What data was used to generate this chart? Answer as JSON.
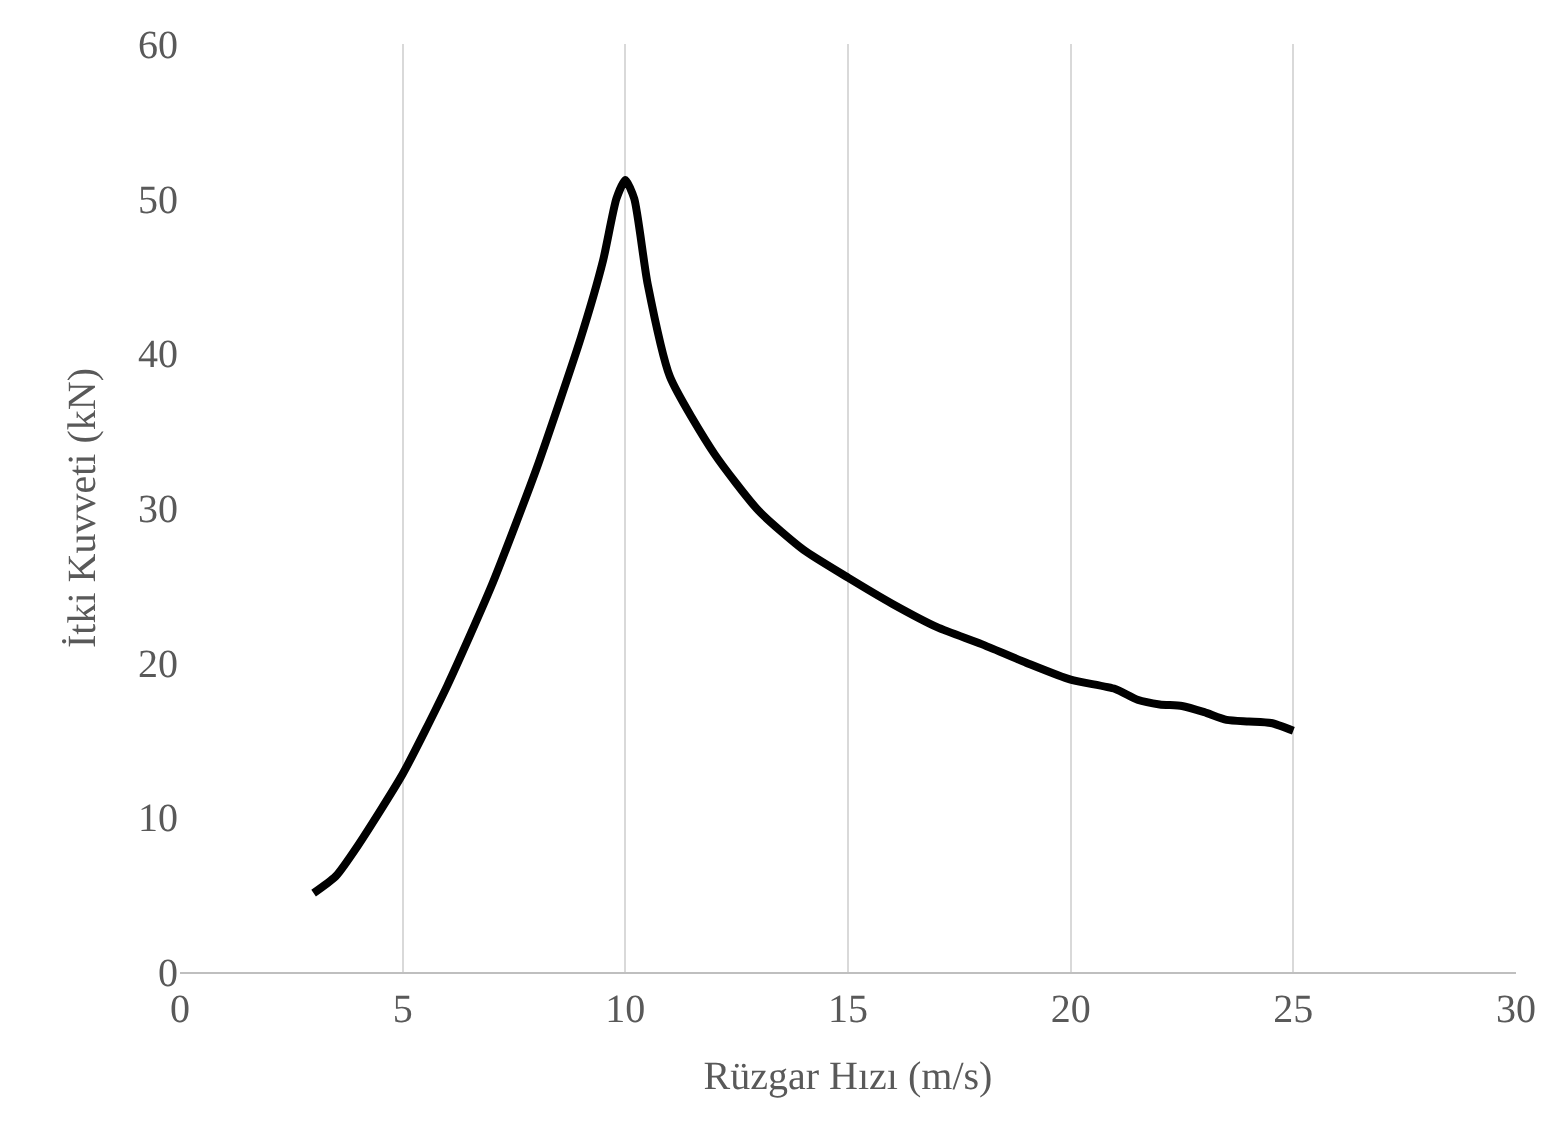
{
  "chart_data": {
    "type": "line",
    "xlabel": "Rüzgar Hızı (m/s)",
    "ylabel": "İtki Kuvveti (kN)",
    "x": [
      3,
      3.5,
      4,
      5,
      6,
      7,
      8,
      9,
      9.5,
      9.8,
      10,
      10.2,
      10.5,
      11,
      12,
      13,
      14,
      15,
      16,
      17,
      18,
      19,
      20,
      21,
      21.5,
      22,
      22.5,
      23,
      23.5,
      24,
      24.5,
      25
    ],
    "series": [
      {
        "color": "#000000",
        "values": [
          5.1,
          6.2,
          8.2,
          12.8,
          18.5,
          25,
          32.5,
          41,
          46,
          50,
          51.2,
          50,
          44.5,
          38.5,
          33.5,
          29.8,
          27.3,
          25.5,
          23.8,
          22.3,
          21.2,
          20,
          18.9,
          18.3,
          17.6,
          17.3,
          17.2,
          16.8,
          16.3,
          16.2,
          16.1,
          15.6
        ]
      }
    ],
    "xlim": [
      0,
      30
    ],
    "xticks": [
      0,
      5,
      10,
      15,
      20,
      25,
      30
    ],
    "ylim": [
      0,
      60
    ],
    "yticks": [
      0,
      10,
      20,
      30,
      40,
      50,
      60
    ],
    "grid": "x",
    "marker": "none",
    "line_style": "solid"
  }
}
